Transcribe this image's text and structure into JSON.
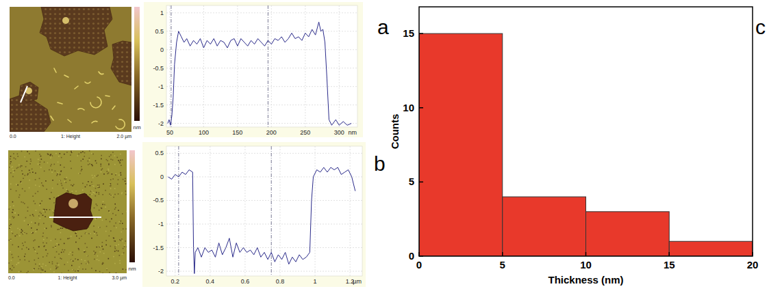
{
  "chart_data": [
    {
      "type": "line",
      "x": [
        47,
        49,
        51,
        53,
        55,
        57,
        60,
        63,
        67,
        71,
        75,
        80,
        85,
        90,
        95,
        100,
        105,
        110,
        115,
        120,
        125,
        130,
        135,
        140,
        145,
        150,
        155,
        160,
        165,
        170,
        175,
        180,
        185,
        190,
        195,
        200,
        205,
        210,
        215,
        220,
        225,
        230,
        235,
        240,
        245,
        250,
        255,
        260,
        265,
        270,
        273,
        276,
        279,
        282,
        285,
        289,
        295,
        300,
        306,
        312,
        318
      ],
      "series": [
        {
          "color": "#2a2a8a",
          "values": [
            -2.0,
            -1.9,
            -2.05,
            -1.8,
            -1.3,
            -0.4,
            0.2,
            0.5,
            0.35,
            0.2,
            0.3,
            0.1,
            0.25,
            0.15,
            0.3,
            0.05,
            0.25,
            0.15,
            0.3,
            0.1,
            0.25,
            0.2,
            0.05,
            0.25,
            0.3,
            0.1,
            0.3,
            0.2,
            0.1,
            0.25,
            0.15,
            0.3,
            0.2,
            0.1,
            0.25,
            0.15,
            0.3,
            0.25,
            0.35,
            0.2,
            0.3,
            0.45,
            0.3,
            0.35,
            0.25,
            0.45,
            0.35,
            0.55,
            0.4,
            0.75,
            0.5,
            0.55,
            0.2,
            -0.8,
            -1.9,
            -2.05,
            -1.9,
            -2.05,
            -1.95,
            -2.05,
            -2.0
          ]
        }
      ],
      "xlim": [
        45,
        327
      ],
      "ylim": [
        -2.1,
        1.2
      ],
      "xticks": [
        50,
        100,
        150,
        200,
        250,
        300
      ],
      "yticks": [
        1,
        0.5,
        0,
        -0.5,
        -1,
        -1.5,
        -2
      ],
      "xlabel": "nm",
      "grid": true,
      "cursors": [
        52,
        195
      ]
    },
    {
      "type": "line",
      "x": [
        0.16,
        0.18,
        0.2,
        0.22,
        0.24,
        0.26,
        0.28,
        0.3,
        0.305,
        0.31,
        0.315,
        0.33,
        0.35,
        0.37,
        0.39,
        0.41,
        0.43,
        0.45,
        0.47,
        0.49,
        0.51,
        0.53,
        0.55,
        0.57,
        0.59,
        0.61,
        0.63,
        0.65,
        0.67,
        0.69,
        0.71,
        0.73,
        0.75,
        0.77,
        0.79,
        0.81,
        0.83,
        0.85,
        0.87,
        0.89,
        0.91,
        0.93,
        0.95,
        0.97,
        0.98,
        0.99,
        1.01,
        1.03,
        1.05,
        1.07,
        1.09,
        1.11,
        1.13,
        1.15,
        1.17,
        1.19,
        1.21,
        1.23
      ],
      "series": [
        {
          "color": "#2a2a8a",
          "values": [
            0.0,
            -0.05,
            0.05,
            0.0,
            0.1,
            0.05,
            0.15,
            0.1,
            -1.5,
            -2.05,
            -1.6,
            -1.5,
            -1.7,
            -1.5,
            -1.6,
            -1.55,
            -1.7,
            -1.4,
            -1.65,
            -1.5,
            -1.3,
            -1.7,
            -1.4,
            -1.6,
            -1.5,
            -1.6,
            -1.55,
            -1.65,
            -1.5,
            -1.7,
            -1.6,
            -1.75,
            -1.6,
            -1.8,
            -1.65,
            -1.75,
            -1.6,
            -1.85,
            -1.7,
            -1.8,
            -1.65,
            -1.75,
            -1.7,
            -1.6,
            -0.5,
            0.0,
            0.15,
            0.1,
            0.2,
            0.1,
            0.2,
            0.15,
            0.2,
            0.05,
            0.1,
            0.15,
            0.0,
            -0.3
          ]
        }
      ],
      "xlim": [
        0.15,
        1.27
      ],
      "ylim": [
        -2.1,
        0.65
      ],
      "xticks": [
        0.2,
        0.4,
        0.6,
        0.8,
        1,
        1.2
      ],
      "yticks": [
        0.5,
        0,
        -0.5,
        -1,
        -1.5,
        -2
      ],
      "xlabel": "µm",
      "grid": true,
      "cursors": [
        0.22,
        0.75
      ]
    },
    {
      "type": "histogram",
      "bins": [
        0,
        5,
        10,
        15,
        20
      ],
      "values": [
        15,
        4,
        3,
        1
      ],
      "color": "#e8392b",
      "xlim": [
        0,
        20
      ],
      "ylim": [
        0,
        16.8
      ],
      "xticks": [
        0,
        5,
        10,
        15,
        20
      ],
      "yticks": [
        0,
        5,
        10,
        15
      ],
      "xlabel": "Thickness (nm)",
      "ylabel": "Counts"
    }
  ],
  "images": [
    {
      "colorbar_unit": "nm",
      "footer": [
        "0.0",
        "1: Height",
        "2.0 µm"
      ]
    },
    {
      "colorbar_unit": "nm",
      "footer": [
        "0.0",
        "1: Height",
        "3.0 µm"
      ]
    }
  ],
  "panel_labels": [
    "a",
    "b",
    "c"
  ]
}
